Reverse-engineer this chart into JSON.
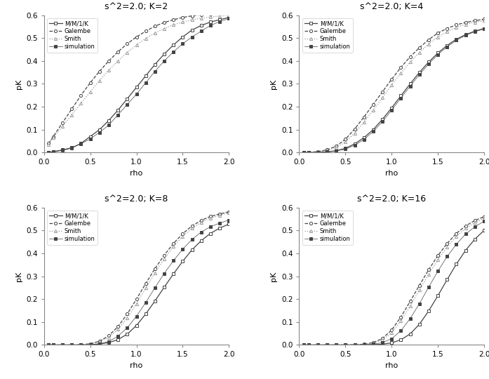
{
  "panels": [
    {
      "title": "s^2=2.0; K=2",
      "K": 2,
      "rho": [
        0.05,
        0.1,
        0.2,
        0.3,
        0.4,
        0.5,
        0.6,
        0.7,
        0.8,
        0.9,
        1.0,
        1.1,
        1.2,
        1.3,
        1.4,
        1.5,
        1.6,
        1.7,
        1.8,
        1.9,
        2.0
      ],
      "mm1k": [
        0.001,
        0.003,
        0.01,
        0.02,
        0.04,
        0.07,
        0.1,
        0.14,
        0.185,
        0.235,
        0.285,
        0.335,
        0.385,
        0.43,
        0.47,
        0.505,
        0.535,
        0.555,
        0.57,
        0.58,
        0.59
      ],
      "galembe": [
        0.04,
        0.07,
        0.13,
        0.19,
        0.25,
        0.305,
        0.355,
        0.4,
        0.44,
        0.475,
        0.505,
        0.53,
        0.552,
        0.568,
        0.58,
        0.59,
        0.597,
        0.601,
        0.605,
        0.607,
        0.61
      ],
      "smith": [
        0.035,
        0.065,
        0.115,
        0.165,
        0.215,
        0.265,
        0.315,
        0.36,
        0.4,
        0.437,
        0.47,
        0.498,
        0.522,
        0.542,
        0.558,
        0.57,
        0.58,
        0.587,
        0.592,
        0.596,
        0.6
      ],
      "sim": [
        0.001,
        0.005,
        0.012,
        0.022,
        0.038,
        0.06,
        0.088,
        0.12,
        0.165,
        0.21,
        0.255,
        0.305,
        0.355,
        0.4,
        0.44,
        0.475,
        0.505,
        0.53,
        0.555,
        0.572,
        0.585
      ]
    },
    {
      "title": "s^2=2.0; K=4",
      "K": 4,
      "rho": [
        0.05,
        0.1,
        0.2,
        0.3,
        0.4,
        0.5,
        0.6,
        0.7,
        0.8,
        0.9,
        1.0,
        1.1,
        1.2,
        1.3,
        1.4,
        1.5,
        1.6,
        1.7,
        1.8,
        1.9,
        2.0
      ],
      "mm1k": [
        0.0,
        0.0,
        0.001,
        0.003,
        0.008,
        0.018,
        0.038,
        0.065,
        0.1,
        0.145,
        0.195,
        0.248,
        0.3,
        0.35,
        0.395,
        0.435,
        0.468,
        0.495,
        0.515,
        0.53,
        0.542
      ],
      "galembe": [
        0.0,
        0.001,
        0.004,
        0.012,
        0.028,
        0.058,
        0.103,
        0.155,
        0.21,
        0.265,
        0.32,
        0.372,
        0.418,
        0.458,
        0.493,
        0.522,
        0.542,
        0.558,
        0.568,
        0.576,
        0.582
      ],
      "smith": [
        0.0,
        0.001,
        0.003,
        0.009,
        0.022,
        0.046,
        0.085,
        0.133,
        0.185,
        0.24,
        0.295,
        0.347,
        0.395,
        0.437,
        0.474,
        0.505,
        0.528,
        0.547,
        0.56,
        0.569,
        0.576
      ],
      "sim": [
        0.0,
        0.0,
        0.001,
        0.003,
        0.007,
        0.015,
        0.032,
        0.057,
        0.092,
        0.135,
        0.185,
        0.238,
        0.29,
        0.34,
        0.387,
        0.428,
        0.462,
        0.49,
        0.512,
        0.528,
        0.54
      ]
    },
    {
      "title": "s^2=2.0; K=8",
      "K": 8,
      "rho": [
        0.05,
        0.1,
        0.2,
        0.3,
        0.4,
        0.5,
        0.6,
        0.7,
        0.8,
        0.9,
        1.0,
        1.1,
        1.2,
        1.3,
        1.4,
        1.5,
        1.6,
        1.7,
        1.8,
        1.9,
        2.0
      ],
      "mm1k": [
        0.0,
        0.0,
        0.0,
        0.0,
        0.0,
        0.001,
        0.004,
        0.01,
        0.023,
        0.047,
        0.085,
        0.135,
        0.192,
        0.252,
        0.31,
        0.365,
        0.415,
        0.455,
        0.487,
        0.51,
        0.528
      ],
      "galembe": [
        0.0,
        0.0,
        0.0,
        0.0,
        0.001,
        0.005,
        0.016,
        0.04,
        0.08,
        0.135,
        0.2,
        0.268,
        0.333,
        0.392,
        0.443,
        0.486,
        0.519,
        0.544,
        0.561,
        0.572,
        0.581
      ],
      "smith": [
        0.0,
        0.0,
        0.0,
        0.0,
        0.001,
        0.004,
        0.013,
        0.033,
        0.068,
        0.118,
        0.18,
        0.248,
        0.315,
        0.376,
        0.43,
        0.474,
        0.509,
        0.535,
        0.554,
        0.566,
        0.576
      ],
      "sim": [
        0.0,
        0.0,
        0.0,
        0.0,
        0.0,
        0.001,
        0.005,
        0.015,
        0.038,
        0.075,
        0.125,
        0.185,
        0.25,
        0.312,
        0.368,
        0.418,
        0.46,
        0.493,
        0.516,
        0.532,
        0.545
      ]
    },
    {
      "title": "s^2=2.0; K=16",
      "K": 16,
      "rho": [
        0.05,
        0.1,
        0.2,
        0.3,
        0.4,
        0.5,
        0.6,
        0.7,
        0.8,
        0.9,
        1.0,
        1.1,
        1.2,
        1.3,
        1.4,
        1.5,
        1.6,
        1.7,
        1.8,
        1.9,
        2.0
      ],
      "mm1k": [
        0.0,
        0.0,
        0.0,
        0.0,
        0.0,
        0.0,
        0.0,
        0.0,
        0.001,
        0.003,
        0.009,
        0.022,
        0.048,
        0.09,
        0.148,
        0.215,
        0.285,
        0.353,
        0.413,
        0.462,
        0.5
      ],
      "galembe": [
        0.0,
        0.0,
        0.0,
        0.0,
        0.0,
        0.0,
        0.001,
        0.003,
        0.01,
        0.028,
        0.065,
        0.122,
        0.19,
        0.26,
        0.328,
        0.39,
        0.443,
        0.487,
        0.52,
        0.543,
        0.56
      ],
      "smith": [
        0.0,
        0.0,
        0.0,
        0.0,
        0.0,
        0.0,
        0.001,
        0.002,
        0.008,
        0.022,
        0.053,
        0.105,
        0.17,
        0.24,
        0.308,
        0.372,
        0.428,
        0.474,
        0.509,
        0.534,
        0.553
      ],
      "sim": [
        0.0,
        0.0,
        0.0,
        0.0,
        0.0,
        0.0,
        0.0,
        0.001,
        0.003,
        0.01,
        0.027,
        0.062,
        0.115,
        0.18,
        0.252,
        0.322,
        0.386,
        0.44,
        0.484,
        0.516,
        0.54
      ]
    }
  ],
  "xlim": [
    0.0,
    2.0
  ],
  "ylim": [
    0.0,
    0.6
  ],
  "xlabel": "rho",
  "ylabel": "pK",
  "legend_labels": [
    "M/M/1/K",
    "Galembe",
    "Smith",
    "simulation"
  ],
  "bg_color": "#ffffff",
  "gray": "#444444",
  "light_gray": "#999999"
}
